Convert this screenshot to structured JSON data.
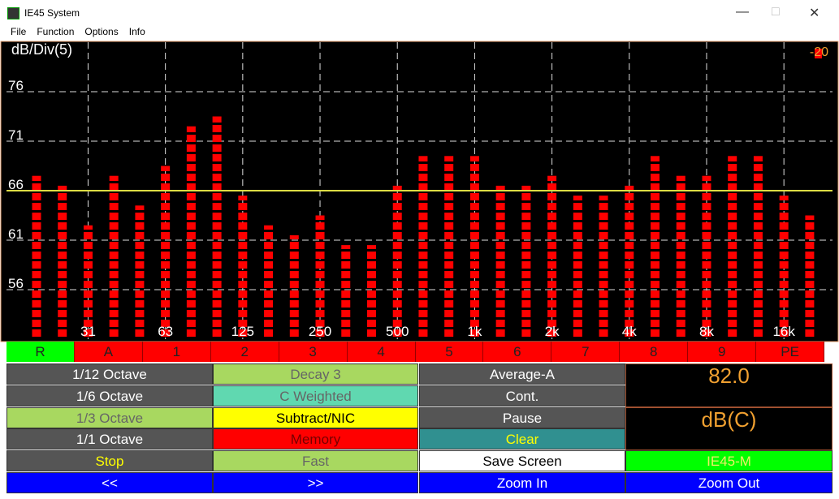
{
  "window": {
    "title": "IE45 System",
    "menu": [
      "File",
      "Function",
      "Options",
      "Info"
    ]
  },
  "chart_data": {
    "type": "bar",
    "scale_label": "dB/Div(5)",
    "indicator": "-20",
    "categories": [
      null,
      null,
      "31",
      null,
      null,
      "63",
      null,
      null,
      "125",
      null,
      null,
      "250",
      null,
      null,
      "500",
      null,
      null,
      "1k",
      null,
      null,
      "2k",
      null,
      null,
      "4k",
      null,
      null,
      "8k",
      null,
      null,
      "16k",
      null
    ],
    "values": [
      67.5,
      66.5,
      62.5,
      67.5,
      64.5,
      68.5,
      72.5,
      73.5,
      65.5,
      62.5,
      61.5,
      63.5,
      60.5,
      60.5,
      66.5,
      69.5,
      69.5,
      69.5,
      66.5,
      66.5,
      67.5,
      65.5,
      65.5,
      66.5,
      69.5,
      67.5,
      67.5,
      69.5,
      69.5,
      65.5,
      63.5
    ],
    "color": "#ff0000",
    "ylim": [
      51,
      81
    ],
    "yticks": [
      56,
      61,
      66,
      71,
      76
    ],
    "reference_line": 66,
    "grid": true
  },
  "tabs": [
    "R",
    "A",
    "1",
    "2",
    "3",
    "4",
    "5",
    "6",
    "7",
    "8",
    "9",
    "PE"
  ],
  "buttons": {
    "col1": [
      "1/12 Octave",
      "1/6 Octave",
      "1/3 Octave",
      "1/1 Octave",
      "Stop",
      "<<"
    ],
    "col2": [
      "Decay 3",
      "C Weighted",
      "Subtract/NIC",
      "Memory",
      "Fast",
      ">>"
    ],
    "col3": [
      "Average-A",
      "Cont.",
      "Pause",
      "Clear",
      "Save Screen",
      "Zoom In"
    ],
    "col4": [
      "IE45-M",
      "Zoom Out"
    ]
  },
  "display": {
    "reading": "82.0",
    "unit": "dB(C)"
  }
}
